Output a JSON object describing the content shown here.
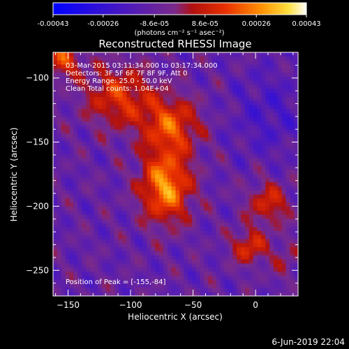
{
  "colorbar": {
    "tick_labels": [
      "-0.00043",
      "-0.00026",
      "-8.6e-05",
      "8.6e-05",
      "0.00026",
      "0.00043"
    ],
    "unit_label": "(photons cm⁻² s⁻¹ asec⁻²)",
    "min": -0.00043,
    "max": 0.00043
  },
  "chart_data": {
    "type": "heatmap",
    "title": "Reconstructed RHESSI Image",
    "xlabel": "Heliocentric X (arcsec)",
    "ylabel": "Heliocentric Y (arcsec)",
    "xlim": [
      -162,
      34
    ],
    "ylim": [
      -270,
      -80
    ],
    "x_ticks": [
      -150,
      -100,
      -50,
      0
    ],
    "y_ticks": [
      -100,
      -150,
      -200,
      -250
    ],
    "x_tick_labels": [
      "−150",
      "−100",
      "−50",
      "0"
    ],
    "y_tick_labels": [
      "−100",
      "−150",
      "−200",
      "−250"
    ],
    "peak": [
      -155,
      -84
    ],
    "colormap": [
      "#0000ff",
      "#5020a0",
      "#7a2a8a",
      "#c01010",
      "#ff6000",
      "#ffd000",
      "#ffffff"
    ]
  },
  "overlay": {
    "line1": "03-Mar-2015 03:11:34.000 to 03:17:34.000",
    "line2": "Detectors: 3F 5F 6F 7F 8F 9F, Att 0",
    "line3": "Energy Range: 25.0 - 50.0 keV",
    "line4": "Clean    Total counts: 1.04E+04",
    "peak_text": "Position of Peak = [-155,-84]"
  },
  "footer": {
    "date": "6-Jun-2019 22:04"
  }
}
